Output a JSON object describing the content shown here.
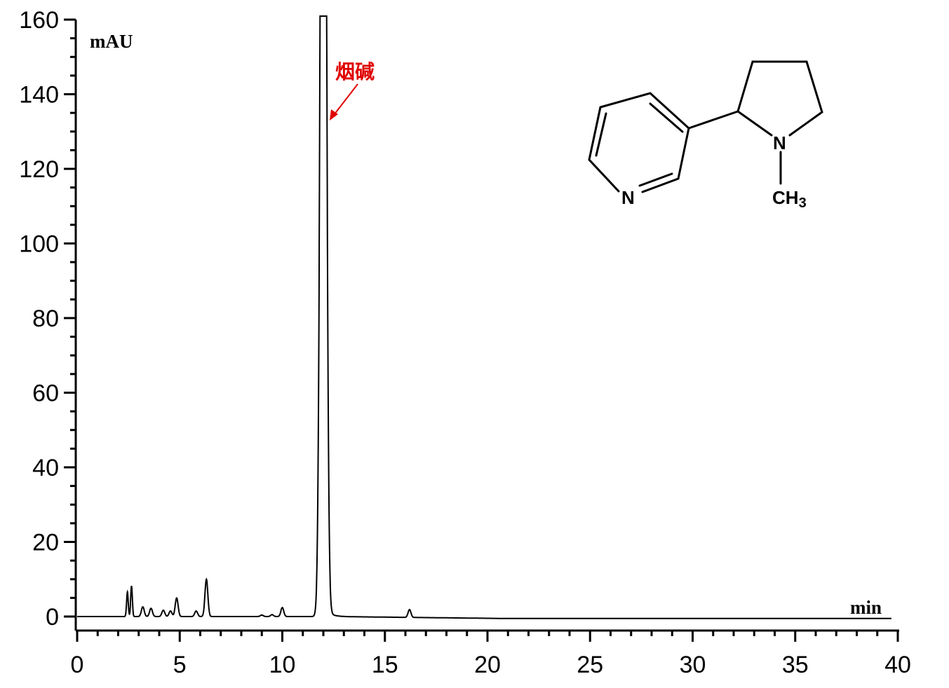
{
  "chart_data": {
    "type": "line",
    "title": "",
    "xlabel": "min",
    "ylabel": "mAU",
    "xlim": [
      0,
      40
    ],
    "ylim": [
      0,
      160
    ],
    "x_ticks": [
      "0",
      "5",
      "10",
      "15",
      "20",
      "25",
      "30",
      "35",
      "40"
    ],
    "y_ticks": [
      "0",
      "20",
      "40",
      "60",
      "80",
      "100",
      "120",
      "140",
      "160"
    ],
    "x_minor_step": 1,
    "y_minor_step": 5,
    "grid": false,
    "line_color": "#000000",
    "peaks": [
      {
        "rt": 2.45,
        "height": 6.6
      },
      {
        "rt": 2.65,
        "height": 8.2
      },
      {
        "rt": 3.2,
        "height": 2.6
      },
      {
        "rt": 3.6,
        "height": 2.2
      },
      {
        "rt": 4.2,
        "height": 1.7
      },
      {
        "rt": 4.55,
        "height": 1.5
      },
      {
        "rt": 4.85,
        "height": 5.0
      },
      {
        "rt": 5.8,
        "height": 1.5
      },
      {
        "rt": 6.3,
        "height": 10.0
      },
      {
        "rt": 9.0,
        "height": 0.4
      },
      {
        "rt": 9.5,
        "height": 0.5
      },
      {
        "rt": 10.0,
        "height": 2.4
      },
      {
        "rt": 12.0,
        "height": 160,
        "off_scale": true
      },
      {
        "rt": 16.2,
        "height": 2.1
      }
    ],
    "annotation": {
      "text": "烟碱",
      "rt": 12.0,
      "color": "#e00000"
    },
    "structure": {
      "atoms": [
        "N",
        "N",
        "CH",
        "3"
      ]
    }
  }
}
